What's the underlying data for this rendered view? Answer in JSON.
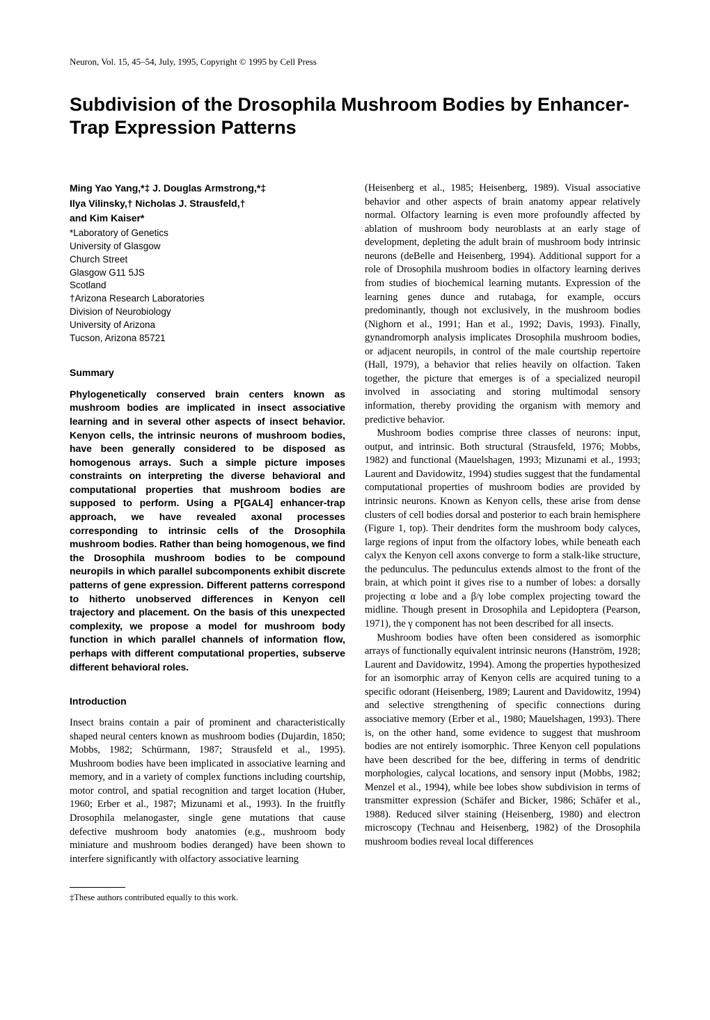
{
  "journal_line": "Neuron, Vol. 15, 45–54, July, 1995, Copyright © 1995 by Cell Press",
  "title": "Subdivision of the Drosophila Mushroom Bodies by Enhancer-Trap Expression Patterns",
  "authors_line1": "Ming Yao Yang,*‡ J. Douglas Armstrong,*‡",
  "authors_line2": "Ilya Vilinsky,† Nicholas J. Strausfeld,†",
  "authors_line3": "and Kim Kaiser*",
  "affil1": "*Laboratory of Genetics",
  "affil2": "University of Glasgow",
  "affil3": "Church Street",
  "affil4": "Glasgow G11 5JS",
  "affil5": "Scotland",
  "affil6": "†Arizona Research Laboratories",
  "affil7": "Division of Neurobiology",
  "affil8": "University of Arizona",
  "affil9": "Tucson, Arizona 85721",
  "heading_summary": "Summary",
  "summary_text": "Phylogenetically conserved brain centers known as mushroom bodies are implicated in insect associative learning and in several other aspects of insect behavior. Kenyon cells, the intrinsic neurons of mushroom bodies, have been generally considered to be disposed as homogenous arrays. Such a simple picture imposes constraints on interpreting the diverse behavioral and computational properties that mushroom bodies are supposed to perform. Using a P[GAL4] enhancer-trap approach, we have revealed axonal processes corresponding to intrinsic cells of the Drosophila mushroom bodies. Rather than being homogenous, we find the Drosophila mushroom bodies to be compound neuropils in which parallel subcomponents exhibit discrete patterns of gene expression. Different patterns correspond to hitherto unobserved differences in Kenyon cell trajectory and placement. On the basis of this unexpected complexity, we propose a model for mushroom body function in which parallel channels of information flow, perhaps with different computational properties, subserve different behavioral roles.",
  "heading_intro": "Introduction",
  "intro_para1": "Insect brains contain a pair of prominent and characteristically shaped neural centers known as mushroom bodies (Dujardin, 1850; Mobbs, 1982; Schürmann, 1987; Strausfeld et al., 1995). Mushroom bodies have been implicated in associative learning and memory, and in a variety of complex functions including courtship, motor control, and spatial recognition and target location (Huber, 1960; Erber et al., 1987; Mizunami et al., 1993). In the fruitfly Drosophila melanogaster, single gene mutations that cause defective mushroom body anatomies (e.g., mushroom body miniature and mushroom bodies deranged) have been shown to interfere significantly with olfactory associative learning",
  "footnote": "‡These authors contributed equally to this work.",
  "right_para1": "(Heisenberg et al., 1985; Heisenberg, 1989). Visual associative behavior and other aspects of brain anatomy appear relatively normal. Olfactory learning is even more profoundly affected by ablation of mushroom body neuroblasts at an early stage of development, depleting the adult brain of mushroom body intrinsic neurons (deBelle and Heisenberg, 1994). Additional support for a role of Drosophila mushroom bodies in olfactory learning derives from studies of biochemical learning mutants. Expression of the learning genes dunce and rutabaga, for example, occurs predominantly, though not exclusively, in the mushroom bodies (Nighorn et al., 1991; Han et al., 1992; Davis, 1993). Finally, gynandromorph analysis implicates Drosophila mushroom bodies, or adjacent neuropils, in control of the male courtship repertoire (Hall, 1979), a behavior that relies heavily on olfaction. Taken together, the picture that emerges is of a specialized neuropil involved in associating and storing multimodal sensory information, thereby providing the organism with memory and predictive behavior.",
  "right_para2": "Mushroom bodies comprise three classes of neurons: input, output, and intrinsic. Both structural (Strausfeld, 1976; Mobbs, 1982) and functional (Mauelshagen, 1993; Mizunami et al., 1993; Laurent and Davidowitz, 1994) studies suggest that the fundamental computational properties of mushroom bodies are provided by intrinsic neurons. Known as Kenyon cells, these arise from dense clusters of cell bodies dorsal and posterior to each brain hemisphere (Figure 1, top). Their dendrites form the mushroom body calyces, large regions of input from the olfactory lobes, while beneath each calyx the Kenyon cell axons converge to form a stalk-like structure, the pedunculus. The pedunculus extends almost to the front of the brain, at which point it gives rise to a number of lobes: a dorsally projecting α lobe and a β/γ lobe complex projecting toward the midline. Though present in Drosophila and Lepidoptera (Pearson, 1971), the γ component has not been described for all insects.",
  "right_para3": "Mushroom bodies have often been considered as isomorphic arrays of functionally equivalent intrinsic neurons (Hanström, 1928; Laurent and Davidowitz, 1994). Among the properties hypothesized for an isomorphic array of Kenyon cells are acquired tuning to a specific odorant (Heisenberg, 1989; Laurent and Davidowitz, 1994) and selective strengthening of specific connections during associative memory (Erber et al., 1980; Mauelshagen, 1993). There is, on the other hand, some evidence to suggest that mushroom bodies are not entirely isomorphic. Three Kenyon cell populations have been described for the bee, differing in terms of dendritic morphologies, calycal locations, and sensory input (Mobbs, 1982; Menzel et al., 1994), while bee lobes show subdivision in terms of transmitter expression (Schäfer and Bicker, 1986; Schäfer et al., 1988). Reduced silver staining (Heisenberg, 1980) and electron microscopy (Technau and Heisenberg, 1982) of the Drosophila mushroom bodies reveal local differences"
}
